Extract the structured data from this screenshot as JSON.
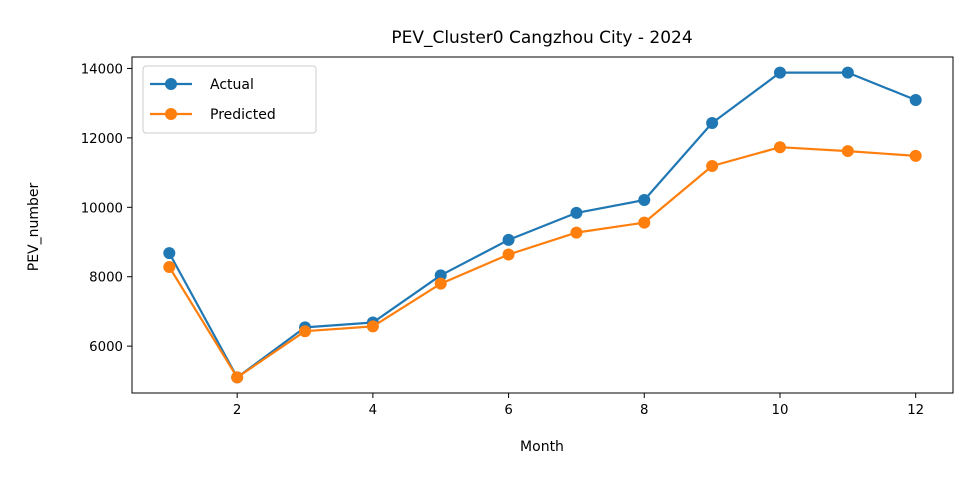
{
  "chart_data": {
    "type": "line",
    "title": "PEV_Cluster0 Cangzhou City - 2024",
    "xlabel": "Month",
    "ylabel": "PEV_number",
    "x": [
      1,
      2,
      3,
      4,
      5,
      6,
      7,
      8,
      9,
      10,
      11,
      12
    ],
    "xticks": [
      2,
      4,
      6,
      8,
      10,
      12
    ],
    "xtick_labels": [
      "2",
      "4",
      "6",
      "8",
      "10",
      "12"
    ],
    "yticks": [
      6000,
      8000,
      10000,
      12000,
      14000
    ],
    "ytick_labels": [
      "6000",
      "8000",
      "10000",
      "12000",
      "14000"
    ],
    "xlim": [
      0.45,
      12.55
    ],
    "ylim": [
      4650,
      14330
    ],
    "grid": false,
    "legend_position": "top-left",
    "series": [
      {
        "name": "Actual",
        "color": "#1f77b4",
        "values": [
          8680,
          5100,
          6540,
          6680,
          8040,
          9060,
          9840,
          10210,
          12430,
          13880,
          13880,
          13090
        ]
      },
      {
        "name": "Predicted",
        "color": "#ff7f0e",
        "values": [
          8280,
          5100,
          6430,
          6570,
          7800,
          8640,
          9270,
          9560,
          11190,
          11730,
          11620,
          11480
        ]
      }
    ]
  }
}
